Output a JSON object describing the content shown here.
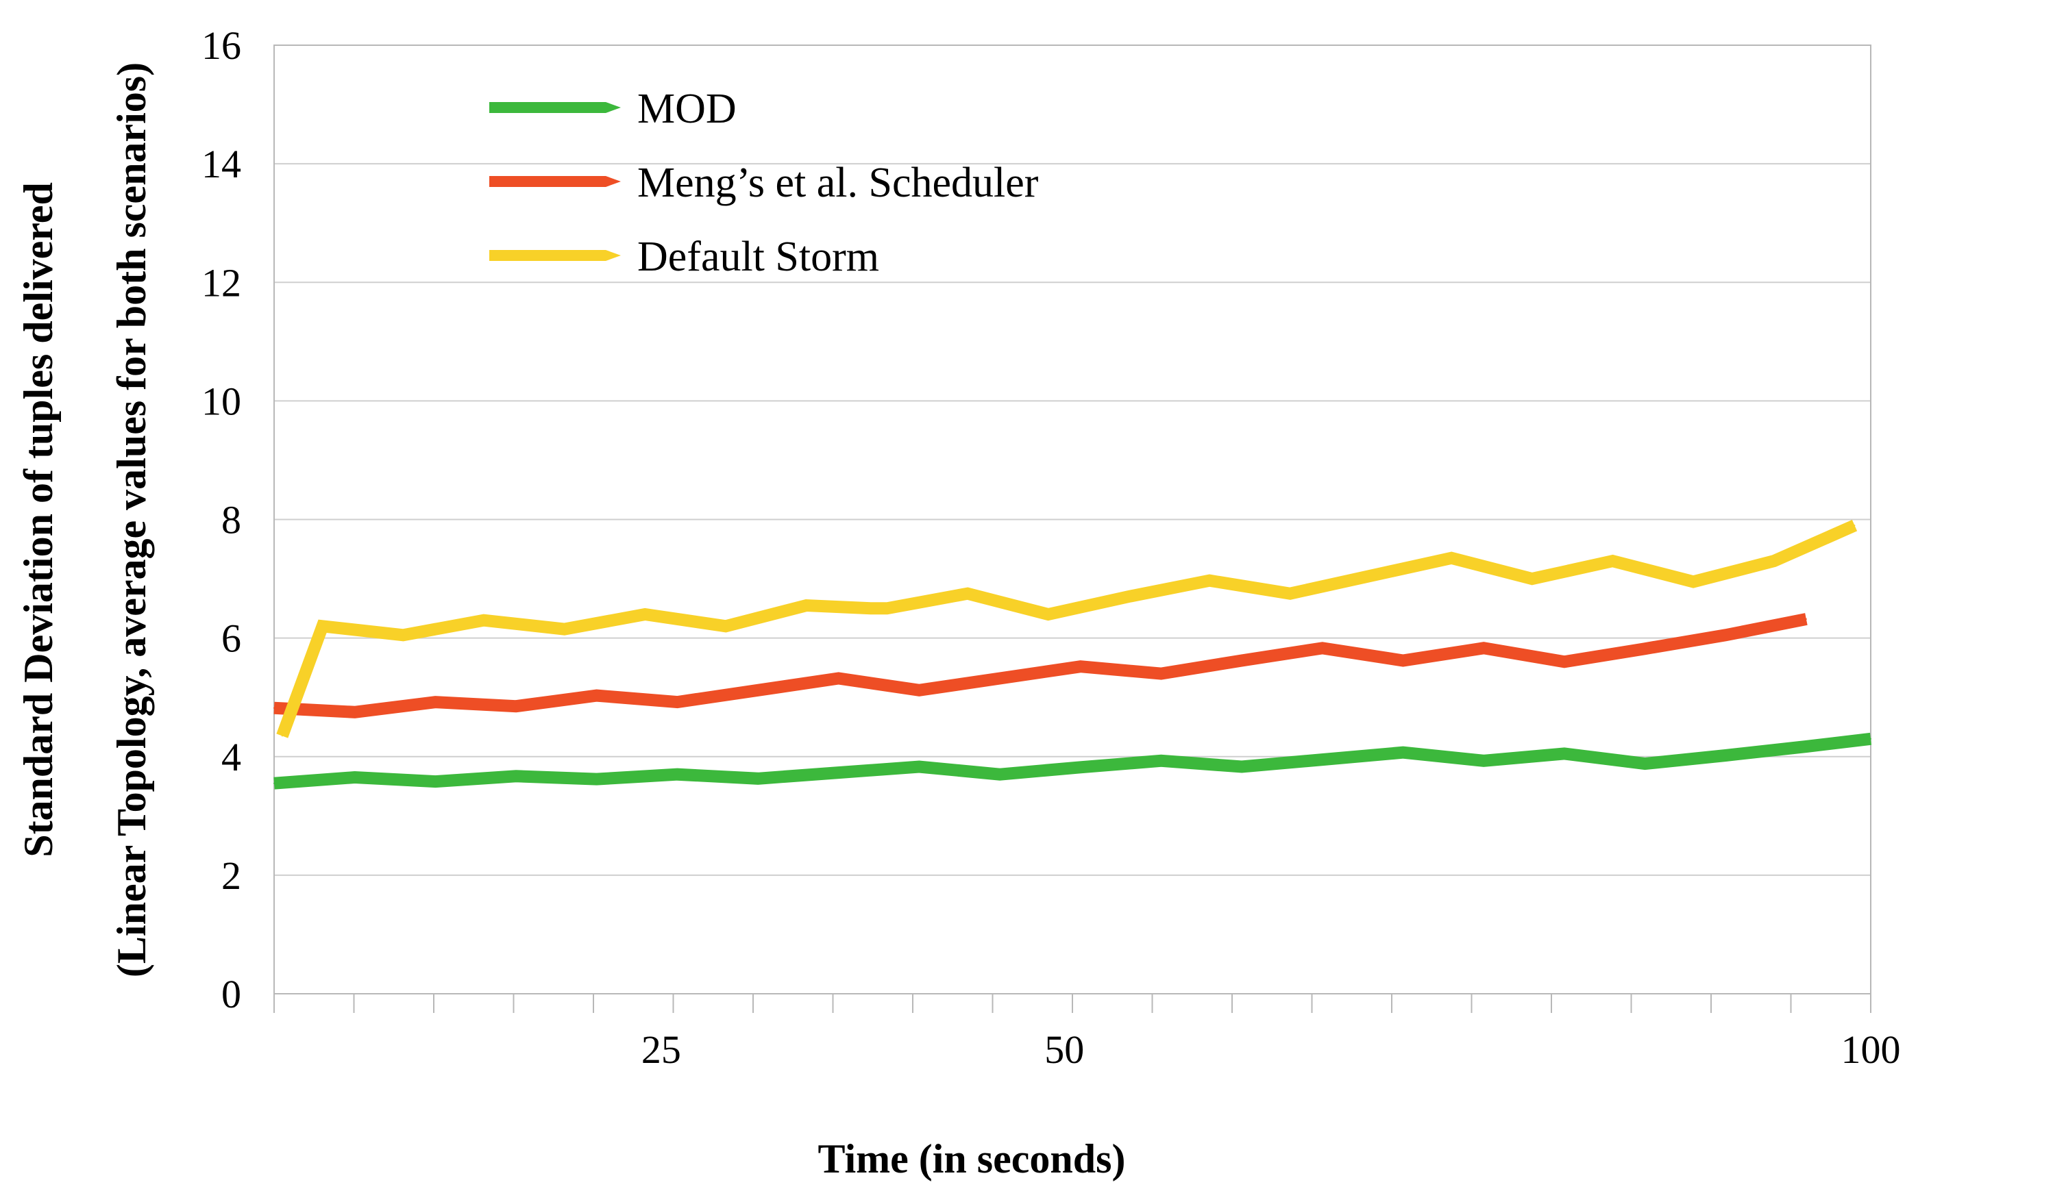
{
  "chart_data": {
    "type": "line",
    "title": "",
    "xlabel": "Time (in seconds)",
    "ylabel_line1": "Standard Deviation of tuples delivered",
    "ylabel_line2": "(Linear Topology, average values for both scenarios)",
    "xlim": [
      1,
      100
    ],
    "ylim": [
      0,
      16
    ],
    "yticks": [
      0,
      2,
      4,
      6,
      8,
      10,
      12,
      14,
      16
    ],
    "xtick_labels": [
      {
        "x": 25,
        "label": "25"
      },
      {
        "x": 50,
        "label": "50"
      },
      {
        "x": 100,
        "label": "100"
      }
    ],
    "grid": true,
    "legend_position": "top-left",
    "series": [
      {
        "name": "MOD",
        "color": "#3cb83c",
        "x": [
          1,
          6,
          11,
          16,
          21,
          26,
          31,
          36,
          41,
          46,
          51,
          56,
          61,
          66,
          71,
          76,
          81,
          86,
          91,
          96,
          100
        ],
        "values": [
          3.55,
          3.65,
          3.58,
          3.67,
          3.62,
          3.7,
          3.63,
          3.73,
          3.83,
          3.7,
          3.82,
          3.93,
          3.83,
          3.95,
          4.07,
          3.93,
          4.05,
          3.88,
          4.02,
          4.17,
          4.3
        ]
      },
      {
        "name": "Meng’s et al. Scheduler",
        "color": "#ee4e25",
        "x": [
          1,
          6,
          11,
          16,
          21,
          26,
          31,
          36,
          41,
          46,
          51,
          56,
          61,
          66,
          71,
          76,
          81,
          86,
          91,
          96
        ],
        "values": [
          4.82,
          4.75,
          4.92,
          4.85,
          5.03,
          4.92,
          5.12,
          5.32,
          5.12,
          5.32,
          5.52,
          5.4,
          5.62,
          5.83,
          5.62,
          5.83,
          5.6,
          5.82,
          6.05,
          6.32
        ]
      },
      {
        "name": "Default Storm",
        "color": "#f8d128",
        "x": [
          1.5,
          4,
          9,
          14,
          19,
          24,
          29,
          34,
          38,
          39,
          44,
          49,
          54,
          59,
          64,
          69,
          74,
          79,
          84,
          89,
          94,
          99
        ],
        "values": [
          4.35,
          6.2,
          6.05,
          6.3,
          6.15,
          6.4,
          6.2,
          6.55,
          6.5,
          6.5,
          6.75,
          6.4,
          6.7,
          6.97,
          6.75,
          7.05,
          7.35,
          7.0,
          7.3,
          6.95,
          7.3,
          7.9
        ]
      }
    ]
  }
}
